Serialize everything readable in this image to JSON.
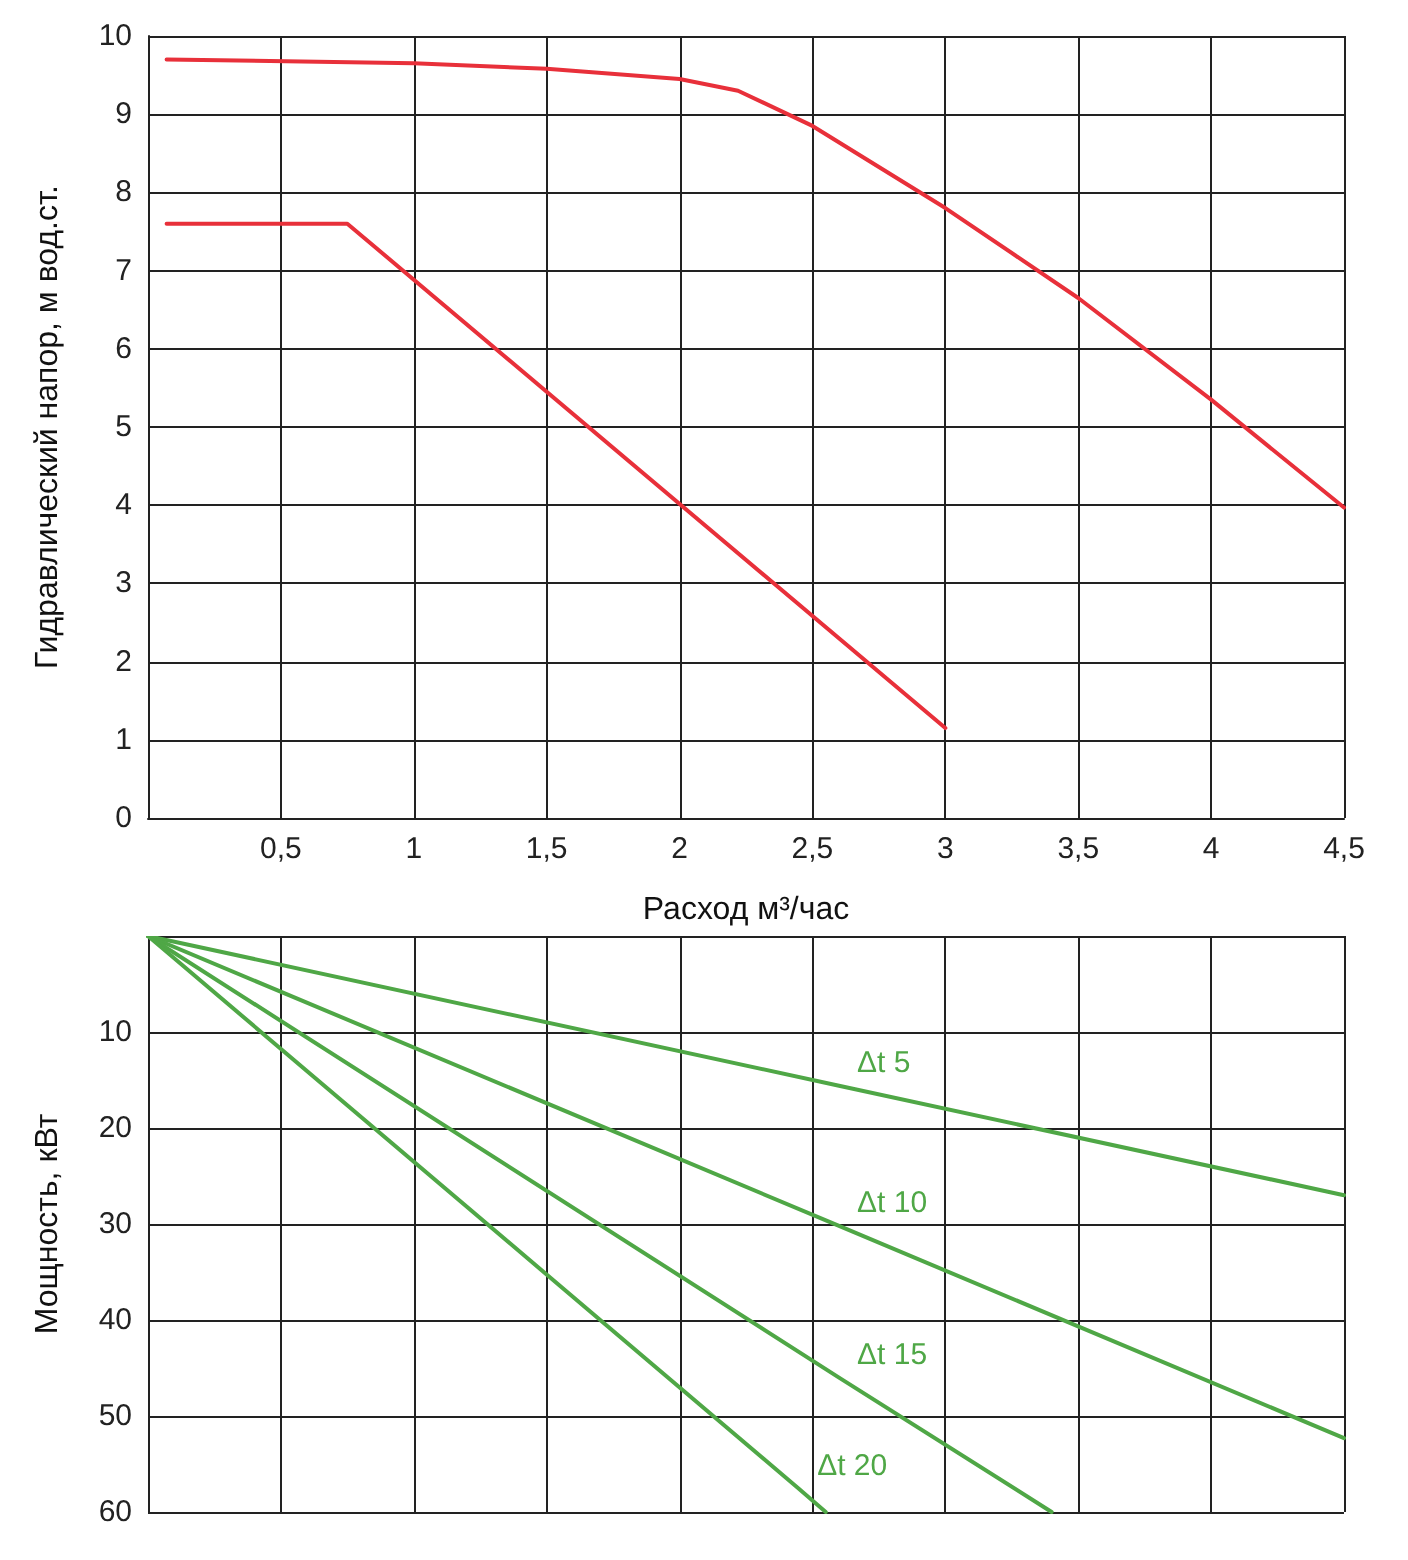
{
  "chart_data": [
    {
      "type": "line",
      "ylabel": "Гидравлический напор, м вод.ст.",
      "xlabel": "Расход м³/час",
      "xlim": [
        0,
        4.5
      ],
      "ylim": [
        0,
        10
      ],
      "xticks": [
        {
          "value": 0,
          "label": null
        },
        {
          "value": 0.5,
          "label": "0,5"
        },
        1,
        {
          "value": 1.5,
          "label": "1,5"
        },
        2,
        {
          "value": 2.5,
          "label": "2,5"
        },
        3,
        {
          "value": 3.5,
          "label": "3,5"
        },
        4,
        {
          "value": 4.5,
          "label": "4,5"
        }
      ],
      "yticks": [
        0,
        1,
        2,
        3,
        4,
        5,
        6,
        7,
        8,
        9,
        10
      ],
      "grid": true,
      "marker": "none",
      "series": [
        {
          "color": "#e8303a",
          "x": [
            0.07,
            1,
            1.5,
            2,
            2.22,
            2.5,
            3,
            3.5,
            4,
            4.5
          ],
          "values": [
            9.7,
            9.65,
            9.58,
            9.45,
            9.3,
            8.85,
            7.8,
            6.65,
            5.35,
            3.97
          ]
        },
        {
          "color": "#e8303a",
          "x": [
            0.07,
            0.75,
            3
          ],
          "values": [
            7.6,
            7.6,
            1.15
          ]
        }
      ]
    },
    {
      "type": "line",
      "ylabel": "Мощность, кВт",
      "xlim": [
        0,
        4.5
      ],
      "ylim": [
        60,
        0
      ],
      "xticks": [
        0,
        0.5,
        1,
        1.5,
        2,
        2.5,
        3,
        3.5,
        4,
        4.5
      ],
      "yticks": [
        {
          "value": 0,
          "label": null
        },
        10,
        20,
        30,
        40,
        50,
        60
      ],
      "grid": true,
      "marker": "none",
      "tick_labels": "y",
      "series": [
        {
          "name": "Δt 5",
          "color": "#4fa746",
          "x": [
            0,
            2.6,
            4.5
          ],
          "values": [
            0,
            15.6,
            27
          ]
        },
        {
          "name": "Δt 10",
          "color": "#4fa746",
          "x": [
            0,
            2.6,
            4.5
          ],
          "values": [
            0,
            30.2,
            52.3
          ]
        },
        {
          "name": "Δt 15",
          "color": "#4fa746",
          "x": [
            0,
            2.6,
            3.4
          ],
          "values": [
            0,
            46,
            60
          ]
        },
        {
          "name": "Δt 20",
          "color": "#4fa746",
          "x": [
            0,
            2.45,
            2.55
          ],
          "values": [
            0,
            57.6,
            60
          ]
        }
      ]
    }
  ]
}
